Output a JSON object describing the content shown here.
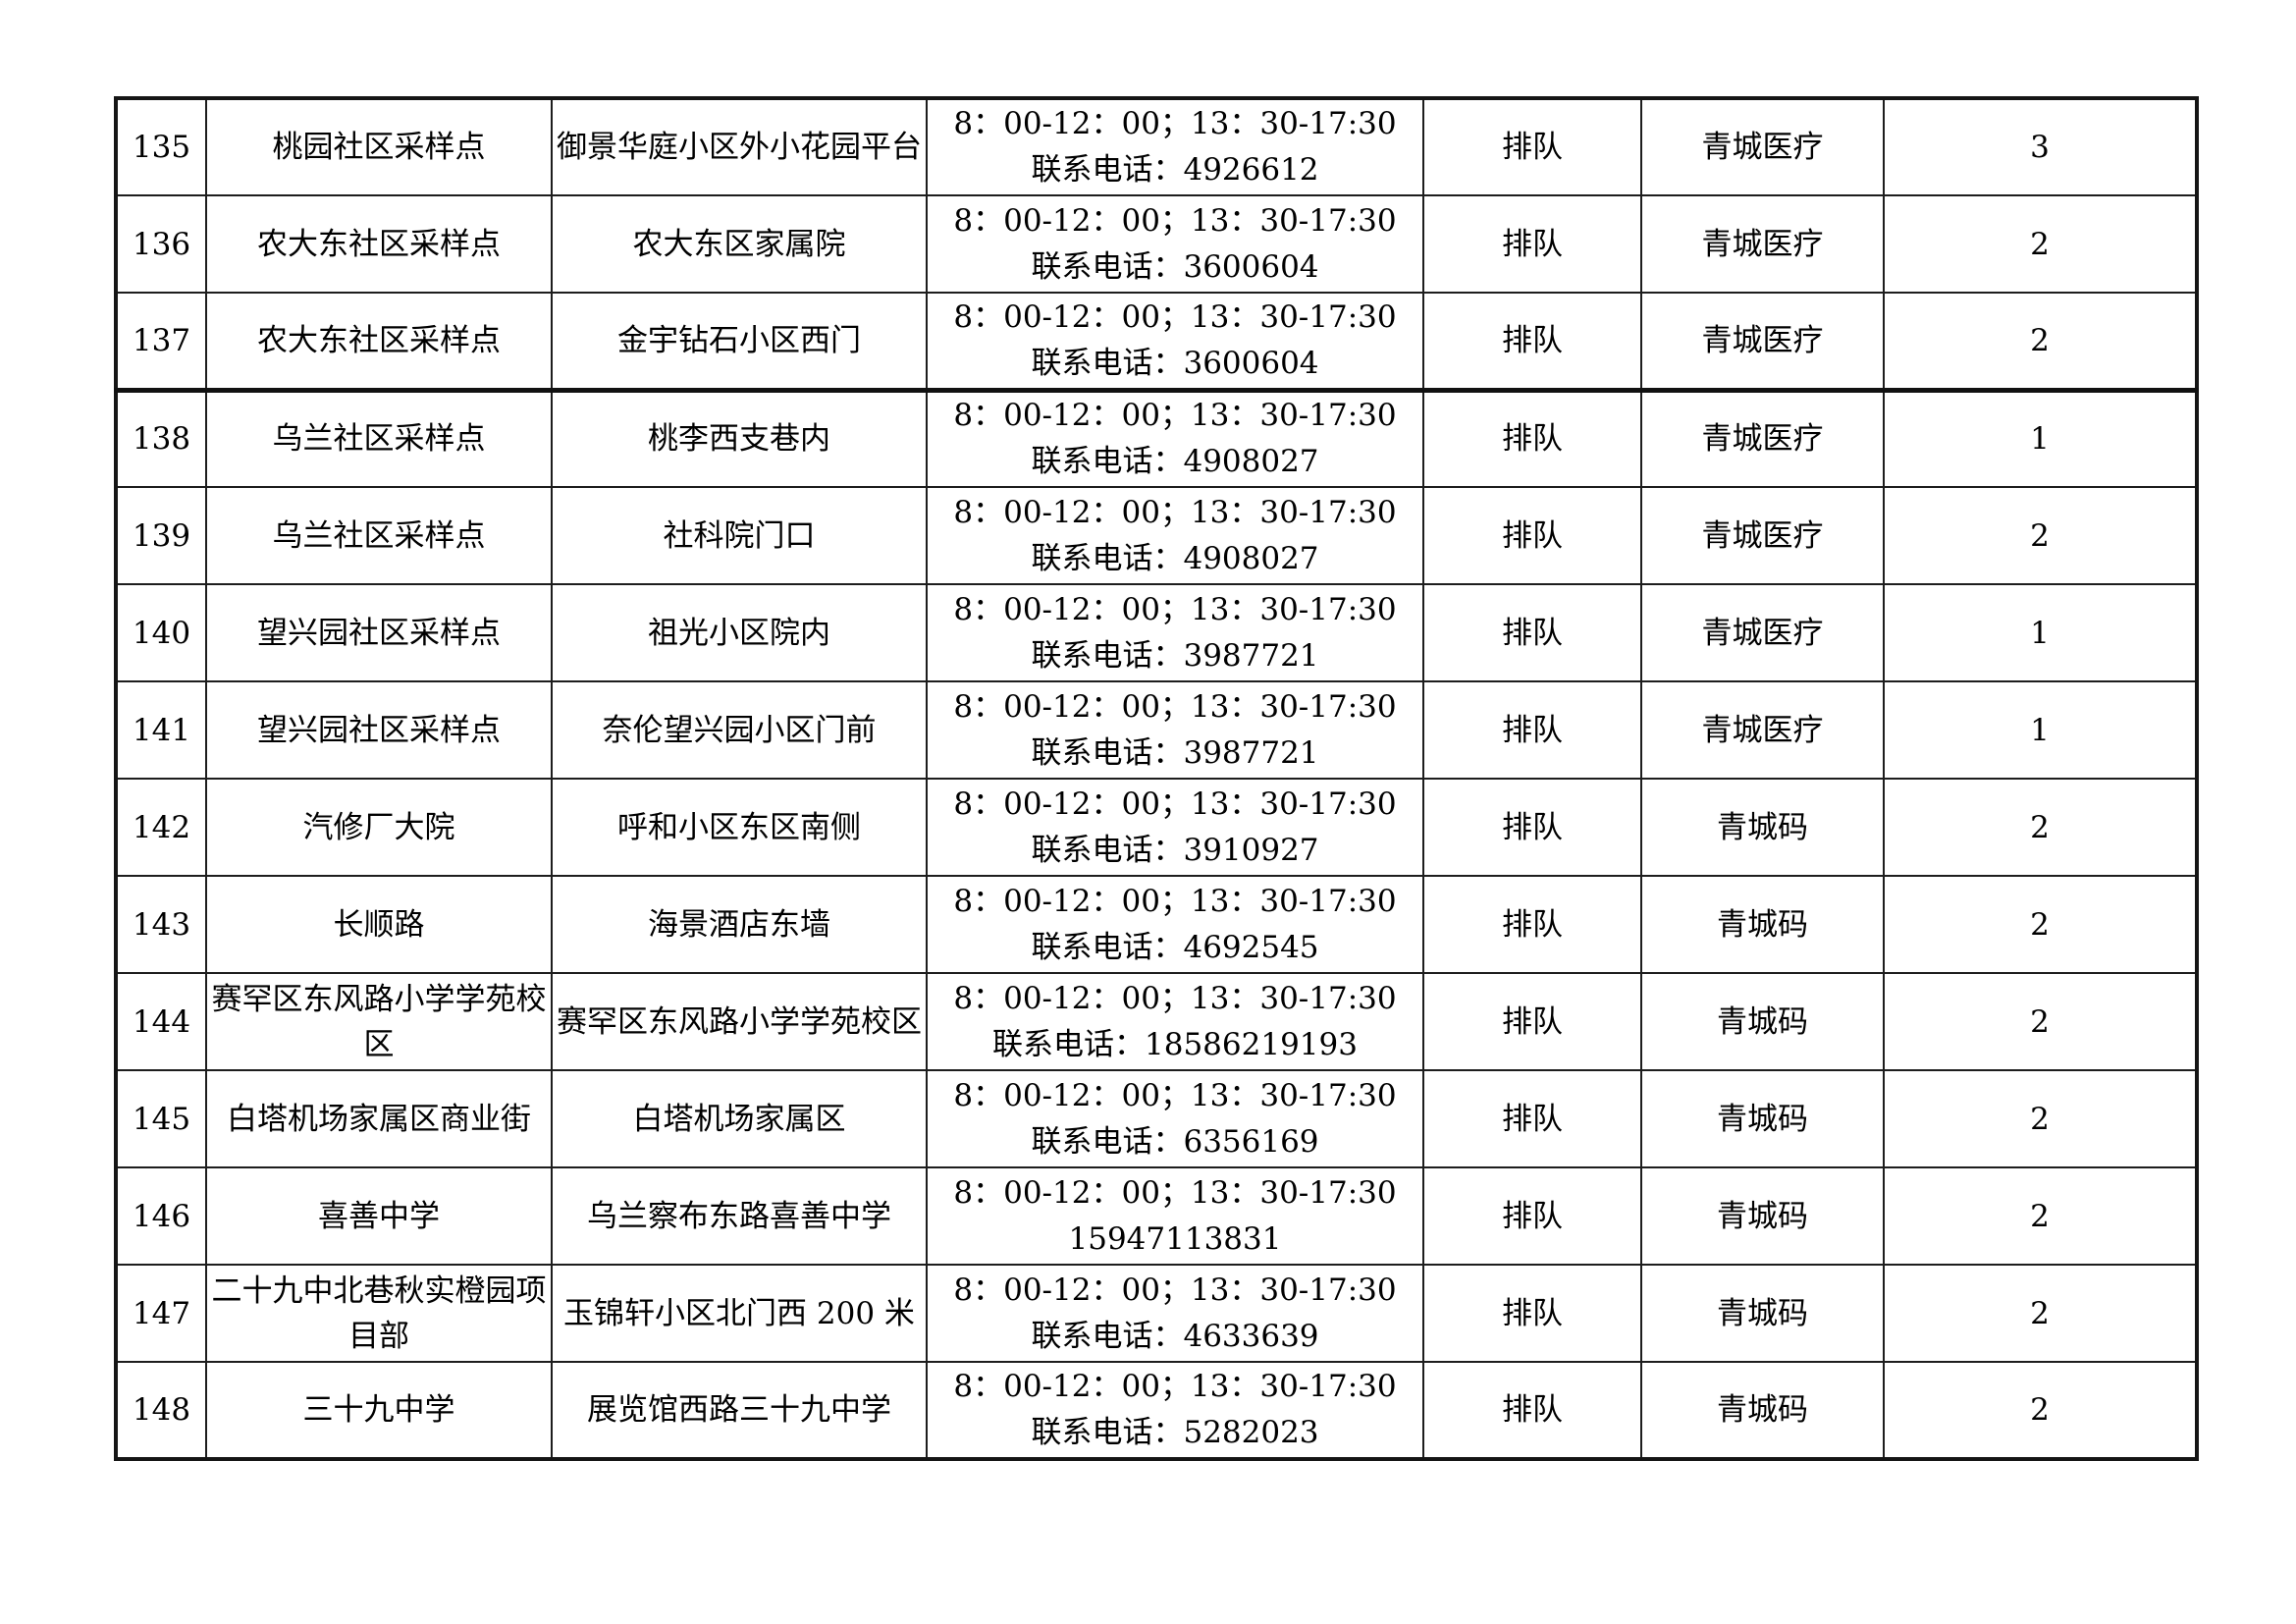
{
  "table": {
    "rows": [
      {
        "num": "135",
        "name": "桃园社区采样点",
        "address": "御景华庭小区外小花园平台",
        "hours": "8：00-12：00；13：30-17:30",
        "phone_line": "联系电话：4926612",
        "queue": "排队",
        "code": "青城医疗",
        "count": "3"
      },
      {
        "num": "136",
        "name": "农大东社区采样点",
        "address": "农大东区家属院",
        "hours": "8：00-12：00；13：30-17:30",
        "phone_line": "联系电话：3600604",
        "queue": "排队",
        "code": "青城医疗",
        "count": "2"
      },
      {
        "num": "137",
        "name": "农大东社区采样点",
        "address": "金宇钻石小区西门",
        "hours": "8：00-12：00；13：30-17:30",
        "phone_line": "联系电话：3600604",
        "queue": "排队",
        "code": "青城医疗",
        "count": "2"
      },
      {
        "num": "138",
        "name": "乌兰社区采样点",
        "address": "桃李西支巷内",
        "hours": "8：00-12：00；13：30-17:30",
        "phone_line": "联系电话：4908027",
        "queue": "排队",
        "code": "青城医疗",
        "count": "1"
      },
      {
        "num": "139",
        "name": "乌兰社区采样点",
        "address": "社科院门口",
        "hours": "8：00-12：00；13：30-17:30",
        "phone_line": "联系电话：4908027",
        "queue": "排队",
        "code": "青城医疗",
        "count": "2"
      },
      {
        "num": "140",
        "name": "望兴园社区采样点",
        "address": "祖光小区院内",
        "hours": "8：00-12：00；13：30-17:30",
        "phone_line": "联系电话：3987721",
        "queue": "排队",
        "code": "青城医疗",
        "count": "1"
      },
      {
        "num": "141",
        "name": "望兴园社区采样点",
        "address": "奈伦望兴园小区门前",
        "hours": "8：00-12：00；13：30-17:30",
        "phone_line": "联系电话：3987721",
        "queue": "排队",
        "code": "青城医疗",
        "count": "1"
      },
      {
        "num": "142",
        "name": "汽修厂大院",
        "address": "呼和小区东区南侧",
        "hours": "8：00-12：00；13：30-17:30",
        "phone_line": "联系电话：3910927",
        "queue": "排队",
        "code": "青城码",
        "count": "2"
      },
      {
        "num": "143",
        "name": "长顺路",
        "address": "海景酒店东墙",
        "hours": "8：00-12：00；13：30-17:30",
        "phone_line": "联系电话：4692545",
        "queue": "排队",
        "code": "青城码",
        "count": "2"
      },
      {
        "num": "144",
        "name": "赛罕区东风路小学学苑校区",
        "address": "赛罕区东风路小学学苑校区",
        "hours": "8：00-12：00；13：30-17:30",
        "phone_line": "联系电话：18586219193",
        "queue": "排队",
        "code": "青城码",
        "count": "2"
      },
      {
        "num": "145",
        "name": "白塔机场家属区商业街",
        "address": "白塔机场家属区",
        "hours": "8：00-12：00；13：30-17:30",
        "phone_line": "联系电话：6356169",
        "queue": "排队",
        "code": "青城码",
        "count": "2"
      },
      {
        "num": "146",
        "name": "喜善中学",
        "address": "乌兰察布东路喜善中学",
        "hours": "8：00-12：00；13：30-17:30",
        "phone_line": "15947113831",
        "queue": "排队",
        "code": "青城码",
        "count": "2"
      },
      {
        "num": "147",
        "name": "二十九中北巷秋实橙园项目部",
        "address": "玉锦轩小区北门西 200 米",
        "hours": "8：00-12：00；13：30-17:30",
        "phone_line": "联系电话：4633639",
        "queue": "排队",
        "code": "青城码",
        "count": "2"
      },
      {
        "num": "148",
        "name": "三十九中学",
        "address": "展览馆西路三十九中学",
        "hours": "8：00-12：00；13：30-17:30",
        "phone_line": "联系电话：5282023",
        "queue": "排队",
        "code": "青城码",
        "count": "2"
      }
    ]
  }
}
